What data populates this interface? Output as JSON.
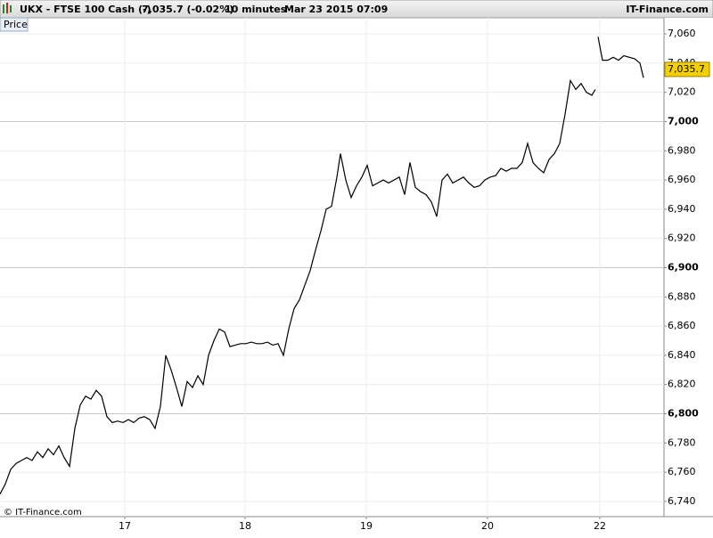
{
  "header": {
    "symbol": "UKX - FTSE 100 Cash (-)",
    "quote": "7,035.7 (-0.02%)",
    "interval": "10 minutes",
    "datetime": "Mar 23 2015 07:09",
    "brand": "IT-Finance.com",
    "panel": "Price",
    "copyright": "© IT-Finance.com"
  },
  "chart_data": {
    "type": "line",
    "color": "#000000",
    "grid": true,
    "last_price": {
      "value": 7035.7,
      "label": "7,035.7"
    },
    "last_price_color": "#f5d000",
    "xlim": [
      0,
      745
    ],
    "ylim": [
      6729.6,
      7071
    ],
    "xticks": [
      {
        "value": 140,
        "label": "17"
      },
      {
        "value": 275,
        "label": "18"
      },
      {
        "value": 411,
        "label": "19"
      },
      {
        "value": 547,
        "label": "20"
      },
      {
        "value": 673,
        "label": "22"
      }
    ],
    "yticks": [
      {
        "value": 6740,
        "label": "6,740"
      },
      {
        "value": 6760,
        "label": "6,760"
      },
      {
        "value": 6780,
        "label": "6,780"
      },
      {
        "value": 6800,
        "label": "6,800"
      },
      {
        "value": 6820,
        "label": "6,820"
      },
      {
        "value": 6840,
        "label": "6,840"
      },
      {
        "value": 6860,
        "label": "6,860"
      },
      {
        "value": 6880,
        "label": "6,880"
      },
      {
        "value": 6900,
        "label": "6,900"
      },
      {
        "value": 6920,
        "label": "6,920"
      },
      {
        "value": 6940,
        "label": "6,940"
      },
      {
        "value": 6960,
        "label": "6,960"
      },
      {
        "value": 6980,
        "label": "6,980"
      },
      {
        "value": 7000,
        "label": "7,000"
      },
      {
        "value": 7020,
        "label": "7,020"
      },
      {
        "value": 7040,
        "label": "7,040"
      },
      {
        "value": 7060,
        "label": "7,060"
      }
    ],
    "x": [
      0,
      6,
      12,
      18,
      24,
      30,
      36,
      42,
      48,
      54,
      60,
      66,
      72,
      78,
      84,
      90,
      96,
      102,
      108,
      114,
      120,
      126,
      132,
      138,
      144,
      150,
      156,
      162,
      168,
      174,
      180,
      186,
      192,
      198,
      204,
      210,
      216,
      222,
      228,
      234,
      240,
      246,
      252,
      258,
      264,
      270,
      276,
      282,
      288,
      294,
      300,
      306,
      312,
      318,
      324,
      330,
      336,
      342,
      348,
      354,
      360,
      366,
      372,
      378,
      382,
      388,
      394,
      400,
      406,
      412,
      418,
      424,
      430,
      436,
      442,
      448,
      454,
      460,
      466,
      472,
      478,
      484,
      490,
      496,
      502,
      508,
      514,
      520,
      526,
      532,
      538,
      544,
      550,
      556,
      562,
      568,
      574,
      580,
      586,
      592,
      598,
      604,
      610,
      616,
      622,
      628,
      634,
      640,
      646,
      652,
      658,
      664,
      668,
      669,
      671,
      676,
      682,
      688,
      694,
      700,
      706,
      712,
      718,
      722
    ],
    "values": [
      6745,
      6752,
      6762,
      6766,
      6768,
      6770,
      6768,
      6774,
      6770,
      6776,
      6772,
      6778,
      6770,
      6764,
      6790,
      6806,
      6812,
      6810,
      6816,
      6812,
      6798,
      6794,
      6795,
      6794,
      6796,
      6794,
      6797,
      6798,
      6796,
      6790,
      6805,
      6840,
      6830,
      6818,
      6805,
      6822,
      6818,
      6826,
      6820,
      6840,
      6850,
      6858,
      6856,
      6846,
      6847,
      6848,
      6848,
      6849,
      6848,
      6848,
      6849,
      6847,
      6848,
      6840,
      6858,
      6872,
      6878,
      6888,
      6898,
      6912,
      6925,
      6940,
      6942,
      6962,
      6978,
      6960,
      6948,
      6956,
      6962,
      6970,
      6956,
      6958,
      6960,
      6958,
      6960,
      6962,
      6950,
      6972,
      6955,
      6952,
      6950,
      6945,
      6935,
      6960,
      6964,
      6958,
      6960,
      6962,
      6958,
      6955,
      6956,
      6960,
      6962,
      6963,
      6968,
      6966,
      6968,
      6968,
      6972,
      6985,
      6972,
      6968,
      6965,
      6974,
      6978,
      6985,
      7005,
      7028,
      7022,
      7026,
      7020,
      7018,
      7022,
      null,
      7058,
      7042,
      7042,
      7044,
      7042,
      7045,
      7044,
      7043,
      7040,
      7030
    ]
  }
}
